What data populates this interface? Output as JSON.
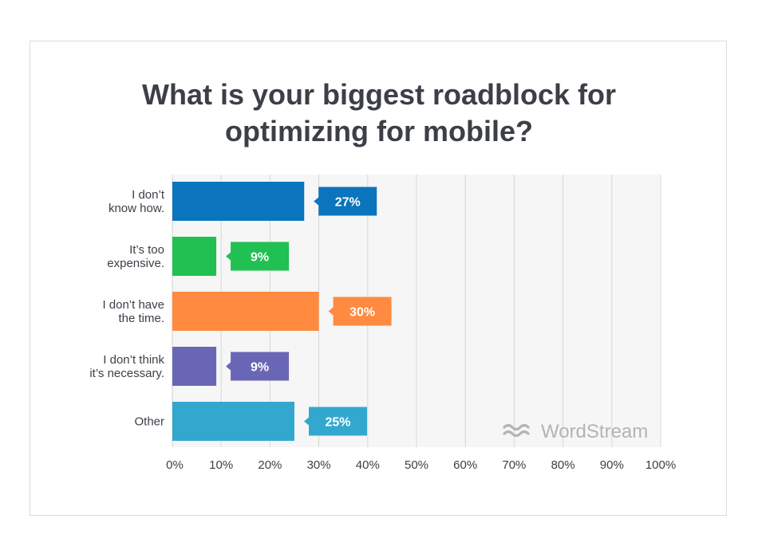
{
  "title_lines": [
    "What is your biggest roadblock for",
    "optimizing for mobile?"
  ],
  "watermark": "WordStream",
  "chart_data": {
    "type": "bar",
    "orientation": "horizontal",
    "title": "What is your biggest roadblock for optimizing for mobile?",
    "categories": [
      [
        "I don’t",
        "know how."
      ],
      [
        "It’s too",
        "expensive."
      ],
      [
        "I don’t have",
        "the time."
      ],
      [
        "I don’t think",
        "it’s necessary."
      ],
      [
        "Other"
      ]
    ],
    "values": [
      27,
      9,
      30,
      9,
      25
    ],
    "value_labels": [
      "27%",
      "9%",
      "30%",
      "9%",
      "25%"
    ],
    "colors": [
      "#0a74bd",
      "#20c052",
      "#ff8a40",
      "#6a66b6",
      "#33a8cf"
    ],
    "xlim": [
      0,
      100
    ],
    "xticks": [
      0,
      10,
      20,
      30,
      40,
      50,
      60,
      70,
      80,
      90,
      100
    ],
    "xtick_labels": [
      "0%",
      "10%",
      "20%",
      "30%",
      "40%",
      "50%",
      "60%",
      "70%",
      "80%",
      "90%",
      "100%"
    ],
    "grid": true,
    "plot_background": "#f5f6f5",
    "gridline_color": "#d6d9d6"
  }
}
